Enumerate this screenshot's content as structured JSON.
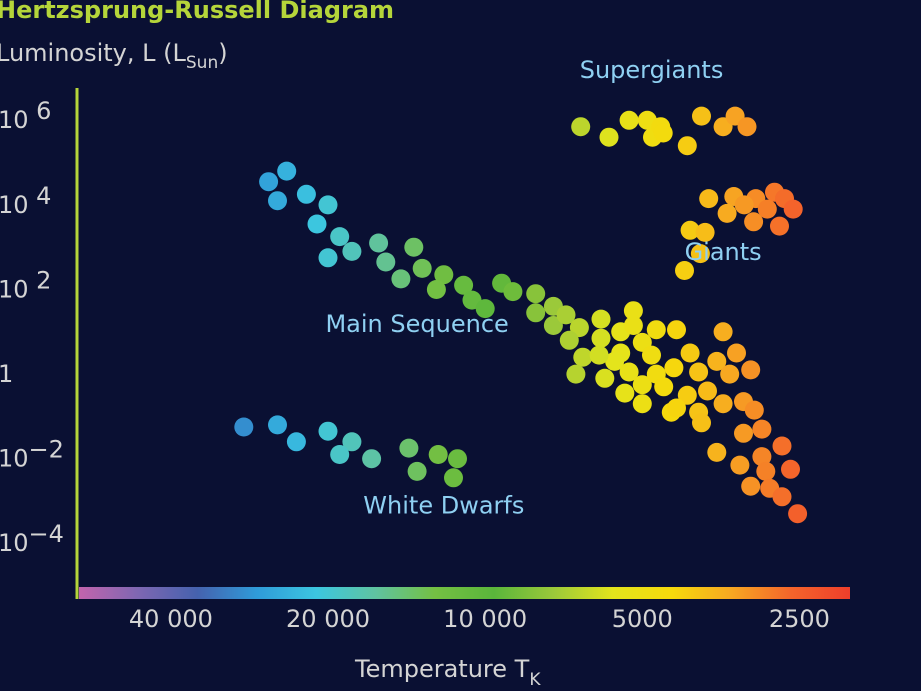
{
  "chart_data": {
    "type": "scatter",
    "title": "Hertzsprung-Russell Diagram",
    "ylabel": {
      "main": "Luminosity, L (L",
      "sub": "Sun",
      "end": ")"
    },
    "xlabel": {
      "main": "Temperature T",
      "sub": "K"
    },
    "y_ticks": [
      {
        "value": 6,
        "base": "10 ",
        "exp": "6"
      },
      {
        "value": 4,
        "base": "10 ",
        "exp": "4"
      },
      {
        "value": 2,
        "base": "10 ",
        "exp": "2"
      },
      {
        "value": 0,
        "base": "1",
        "exp": ""
      },
      {
        "value": -2,
        "base": "10",
        "exp": "−2"
      },
      {
        "value": -4,
        "base": "10",
        "exp": "−4"
      }
    ],
    "x_ticks": [
      {
        "value": 40000,
        "label": "40 000"
      },
      {
        "value": 20000,
        "label": "20 000"
      },
      {
        "value": 10000,
        "label": "10 000"
      },
      {
        "value": 5000,
        "label": "5000"
      },
      {
        "value": 2500,
        "label": "2500"
      }
    ],
    "x_scale": "log-reversed",
    "xlim": [
      60000,
      2000
    ],
    "ylim": [
      -5.2,
      7
    ],
    "colorbar": [
      "#c264ad",
      "#7e67b2",
      "#4562ae",
      "#2f9bd9",
      "#3cc6e0",
      "#5fc3a1",
      "#74c043",
      "#5ab63b",
      "#9bc93a",
      "#e3e41c",
      "#f6d90c",
      "#f7a722",
      "#f4652b",
      "#ee3e2b"
    ],
    "axis_color": "#b5d53a",
    "region_labels": [
      {
        "name": "supergiants",
        "text": "Supergiants",
        "x": 4800,
        "y": 6.95
      },
      {
        "name": "giants",
        "text": "Giants",
        "x": 3500,
        "y": 2.65
      },
      {
        "name": "main-sequence",
        "text": "Main Sequence",
        "x": 13500,
        "y": 0.95
      },
      {
        "name": "white-dwarfs",
        "text": "White Dwarfs",
        "x": 12000,
        "y": -3.35
      }
    ],
    "series": [
      {
        "name": "Supergiants",
        "points": [
          [
            6560,
            5.8
          ],
          [
            5790,
            5.55
          ],
          [
            5300,
            5.95
          ],
          [
            4890,
            5.95
          ],
          [
            4780,
            5.55
          ],
          [
            4610,
            5.8
          ],
          [
            4560,
            5.65
          ],
          [
            4100,
            5.35
          ],
          [
            3850,
            6.05
          ],
          [
            3500,
            5.8
          ],
          [
            3320,
            6.05
          ],
          [
            3150,
            5.8
          ]
        ]
      },
      {
        "name": "Giants",
        "points": [
          [
            3730,
            4.1
          ],
          [
            3340,
            4.15
          ],
          [
            3030,
            4.1
          ],
          [
            2790,
            4.25
          ],
          [
            2670,
            4.1
          ],
          [
            3190,
            3.95
          ],
          [
            2880,
            3.85
          ],
          [
            2570,
            3.85
          ],
          [
            3440,
            3.75
          ],
          [
            3060,
            3.55
          ],
          [
            2730,
            3.45
          ],
          [
            4050,
            3.35
          ],
          [
            3790,
            3.3
          ],
          [
            3870,
            2.8
          ],
          [
            4150,
            2.4
          ]
        ]
      },
      {
        "name": "Main Sequence",
        "points": [
          [
            24000,
            4.75
          ],
          [
            26000,
            4.5
          ],
          [
            22000,
            4.2
          ],
          [
            25000,
            4.05
          ],
          [
            20000,
            3.95
          ],
          [
            21000,
            3.5
          ],
          [
            19000,
            3.2
          ],
          [
            20000,
            2.7
          ],
          [
            18000,
            2.85
          ],
          [
            16000,
            3.05
          ],
          [
            15500,
            2.6
          ],
          [
            13700,
            2.95
          ],
          [
            13200,
            2.45
          ],
          [
            14500,
            2.2
          ],
          [
            12000,
            2.3
          ],
          [
            12400,
            1.95
          ],
          [
            11000,
            2.05
          ],
          [
            10600,
            1.7
          ],
          [
            10000,
            1.5
          ],
          [
            9300,
            2.1
          ],
          [
            8850,
            1.9
          ],
          [
            8000,
            1.85
          ],
          [
            8000,
            1.4
          ],
          [
            7400,
            1.55
          ],
          [
            7400,
            1.1
          ],
          [
            7000,
            1.35
          ],
          [
            6600,
            1.05
          ],
          [
            6000,
            1.25
          ],
          [
            6000,
            0.8
          ],
          [
            5500,
            0.95
          ],
          [
            5500,
            0.45
          ],
          [
            5200,
            1.1
          ],
          [
            5000,
            0.7
          ],
          [
            4800,
            0.4
          ],
          [
            5650,
            0.25
          ],
          [
            5900,
            -0.15
          ],
          [
            5300,
            0.0
          ],
          [
            5000,
            -0.3
          ],
          [
            4700,
            -0.05
          ],
          [
            4550,
            -0.35
          ],
          [
            4350,
            0.1
          ],
          [
            4300,
            1.0
          ],
          [
            4050,
            0.45
          ],
          [
            3900,
            0.0
          ],
          [
            3750,
            -0.45
          ],
          [
            3600,
            0.25
          ],
          [
            3500,
            0.95
          ],
          [
            3400,
            -0.05
          ],
          [
            3300,
            0.45
          ],
          [
            3100,
            0.05
          ],
          [
            5200,
            1.45
          ],
          [
            4700,
            1.0
          ],
          [
            3900,
            -0.95
          ],
          [
            3500,
            -0.75
          ],
          [
            3200,
            -0.7
          ],
          [
            3050,
            -0.9
          ],
          [
            2950,
            -1.35
          ],
          [
            4400,
            -0.95
          ],
          [
            4100,
            -0.55
          ],
          [
            3850,
            -1.2
          ],
          [
            6900,
            0.75
          ],
          [
            6500,
            0.35
          ],
          [
            6700,
            -0.05
          ],
          [
            6050,
            0.4
          ],
          [
            5400,
            -0.5
          ],
          [
            5000,
            -0.75
          ],
          [
            4300,
            -0.85
          ],
          [
            3600,
            -1.9
          ],
          [
            3200,
            -1.45
          ],
          [
            2950,
            -2.0
          ],
          [
            3250,
            -2.2
          ],
          [
            2900,
            -2.35
          ],
          [
            2700,
            -1.75
          ],
          [
            3100,
            -2.7
          ],
          [
            2850,
            -2.75
          ],
          [
            2600,
            -2.3
          ],
          [
            2700,
            -2.95
          ],
          [
            2520,
            -3.35
          ]
        ]
      },
      {
        "name": "White Dwarfs",
        "points": [
          [
            29000,
            -1.3
          ],
          [
            25000,
            -1.25
          ],
          [
            23000,
            -1.65
          ],
          [
            20000,
            -1.4
          ],
          [
            18000,
            -1.65
          ],
          [
            19000,
            -1.95
          ],
          [
            16500,
            -2.05
          ],
          [
            14000,
            -1.8
          ],
          [
            12300,
            -1.95
          ],
          [
            13500,
            -2.35
          ],
          [
            11300,
            -2.05
          ],
          [
            11500,
            -2.5
          ]
        ]
      }
    ]
  }
}
